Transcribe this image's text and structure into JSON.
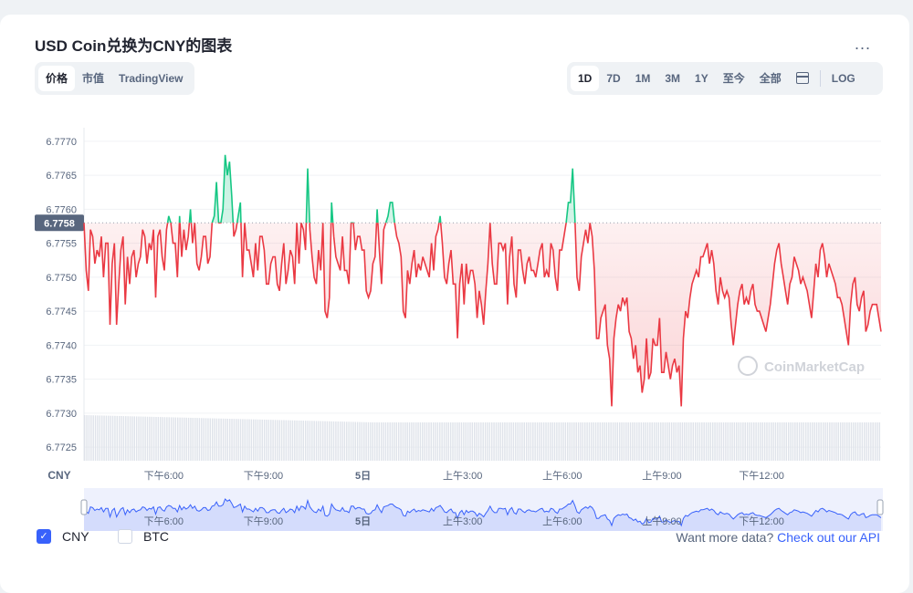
{
  "header": {
    "title": "USD Coin兑换为CNY的图表",
    "more": "..."
  },
  "view_tabs": [
    {
      "label": "价格",
      "active": true
    },
    {
      "label": "市值",
      "active": false
    },
    {
      "label": "TradingView",
      "active": false
    }
  ],
  "range_tabs": [
    {
      "label": "1D",
      "active": true
    },
    {
      "label": "7D",
      "active": false
    },
    {
      "label": "1M",
      "active": false
    },
    {
      "label": "3M",
      "active": false
    },
    {
      "label": "1Y",
      "active": false
    },
    {
      "label": "至今",
      "active": false
    },
    {
      "label": "全部",
      "active": false
    }
  ],
  "log_label": "LOG",
  "watermark": "CoinMarketCap",
  "footer": {
    "cny_label": "CNY",
    "btc_label": "BTC",
    "cny_checked": true,
    "btc_checked": false,
    "api_text": "Want more data?",
    "api_link": "Check out our API"
  },
  "colors": {
    "up": "#16c784",
    "down": "#ea3943",
    "accent": "#3861fb",
    "nav_line": "#3861fb",
    "volume": "#dfe3ea"
  },
  "chart_data": {
    "type": "line",
    "title": "",
    "currency_label": "CNY",
    "baseline": 6.7758,
    "baseline_label": "6.7758",
    "ylim": [
      6.7723,
      6.7772
    ],
    "y_ticks": [
      "6.7770",
      "6.7765",
      "6.7760",
      "6.7755",
      "6.7750",
      "6.7745",
      "6.7740",
      "6.7735",
      "6.7730",
      "6.7725"
    ],
    "x_ticks": [
      "下午6:00",
      "下午9:00",
      "5日",
      "上午3:00",
      "上午6:00",
      "上午9:00",
      "下午12:00"
    ],
    "x_range": [
      0,
      100
    ],
    "x_tick_positions": [
      10,
      22.5,
      35,
      47.5,
      60,
      72.5,
      85
    ],
    "series": [
      {
        "values": [
          6.7758,
          6.7751,
          6.7748,
          6.7757,
          6.7756,
          6.7752,
          6.7754,
          6.7753,
          6.7756,
          6.775,
          6.7755,
          6.7755,
          6.7743,
          6.7752,
          6.7755,
          6.7743,
          6.7749,
          6.7754,
          6.7756,
          6.7746,
          6.7753,
          6.7749,
          6.7753,
          6.7754,
          6.775,
          6.7752,
          6.7753,
          6.7757,
          6.7756,
          6.7752,
          6.7755,
          6.7754,
          6.7757,
          6.7747,
          6.7756,
          6.7757,
          6.7753,
          6.7751,
          6.7757,
          6.7759,
          6.7758,
          6.7755,
          6.7755,
          6.775,
          6.7759,
          6.7753,
          6.7757,
          6.7754,
          6.7756,
          6.776,
          6.7755,
          6.7758,
          6.7752,
          6.7751,
          6.7753,
          6.7756,
          6.7756,
          6.7752,
          6.7753,
          6.7758,
          6.7759,
          6.7764,
          6.7758,
          6.7758,
          6.776,
          6.7768,
          6.7765,
          6.7767,
          6.7762,
          6.7756,
          6.7757,
          6.7759,
          6.7761,
          6.775,
          6.7758,
          6.7754,
          6.7754,
          6.7752,
          6.775,
          6.7755,
          6.7751,
          6.7756,
          6.7756,
          6.7754,
          6.7749,
          6.7749,
          6.7752,
          6.7753,
          6.7753,
          6.7749,
          6.7748,
          6.7752,
          6.7755,
          6.7749,
          6.7751,
          6.7754,
          6.7753,
          6.7749,
          6.7758,
          6.7752,
          6.7758,
          6.7757,
          6.7754,
          6.7766,
          6.7757,
          6.7753,
          6.775,
          6.7749,
          6.7754,
          6.7751,
          6.7758,
          6.7745,
          6.7744,
          6.7747,
          6.7761,
          6.7756,
          6.7753,
          6.7752,
          6.7751,
          6.7756,
          6.7751,
          6.7751,
          6.7749,
          6.7758,
          6.7758,
          6.7754,
          6.7756,
          6.7756,
          6.7754,
          6.7754,
          6.7748,
          6.7747,
          6.7748,
          6.7752,
          6.7753,
          6.776,
          6.7754,
          6.7749,
          6.7757,
          6.7758,
          6.7759,
          6.7761,
          6.7761,
          6.7758,
          6.7756,
          6.7755,
          6.7753,
          6.7745,
          6.7744,
          6.7751,
          6.7749,
          6.7752,
          6.7754,
          6.775,
          6.7752,
          6.7751,
          6.7753,
          6.7752,
          6.7751,
          6.775,
          6.7755,
          6.7751,
          6.7756,
          6.7757,
          6.7759,
          6.7755,
          6.775,
          6.7749,
          6.7752,
          6.7754,
          6.7749,
          6.7749,
          6.7741,
          6.7749,
          6.7752,
          6.7746,
          6.7752,
          6.7749,
          6.7751,
          6.7751,
          6.7749,
          6.7744,
          6.7748,
          6.7746,
          6.7743,
          6.7748,
          6.7752,
          6.7758,
          6.7752,
          6.7749,
          6.7749,
          6.7755,
          6.7755,
          6.7754,
          6.7755,
          6.7746,
          6.7753,
          6.7756,
          6.7749,
          6.7747,
          6.7754,
          6.7754,
          6.7751,
          6.7749,
          6.7752,
          6.7753,
          6.7751,
          6.7751,
          6.775,
          6.7752,
          6.7754,
          6.7755,
          6.775,
          6.7751,
          6.775,
          6.7755,
          6.7754,
          6.775,
          6.7748,
          6.7754,
          6.7754,
          6.7756,
          6.7758,
          6.7761,
          6.7761,
          6.7766,
          6.7759,
          6.775,
          6.7748,
          6.7753,
          6.7755,
          6.7757,
          6.7755,
          6.7758,
          6.7756,
          6.7751,
          6.7741,
          6.7741,
          6.7744,
          6.7745,
          6.7746,
          6.774,
          6.7738,
          6.7731,
          6.7741,
          6.7744,
          6.7746,
          6.7745,
          6.7747,
          6.7746,
          6.7747,
          6.7742,
          6.7741,
          6.7738,
          6.774,
          6.7736,
          6.7737,
          6.7733,
          6.7735,
          6.7741,
          6.7735,
          6.7736,
          6.7741,
          6.774,
          6.774,
          6.7744,
          6.7736,
          6.7736,
          6.7739,
          6.7737,
          6.7735,
          6.7737,
          6.7738,
          6.7736,
          6.7737,
          6.7731,
          6.7741,
          6.7745,
          6.7744,
          6.7747,
          6.7749,
          6.775,
          6.7751,
          6.775,
          6.7753,
          6.7753,
          6.7754,
          6.7755,
          6.7752,
          6.7754,
          6.7752,
          6.7748,
          6.7746,
          6.775,
          6.7748,
          6.7747,
          6.7748,
          6.7747,
          6.7743,
          6.774,
          6.7743,
          6.7746,
          6.7748,
          6.7749,
          6.7746,
          6.7747,
          6.7746,
          6.7748,
          6.7749,
          6.7746,
          6.7745,
          6.7745,
          6.7744,
          6.7743,
          6.7742,
          6.7744,
          6.7746,
          6.7749,
          6.7752,
          6.7754,
          6.7755,
          6.7752,
          6.775,
          6.7748,
          6.7746,
          6.7749,
          6.775,
          6.7753,
          6.7752,
          6.7751,
          6.7749,
          6.775,
          6.7749,
          6.7748,
          6.7746,
          6.7744,
          6.7748,
          6.7752,
          6.775,
          6.7754,
          6.7755,
          6.7753,
          6.775,
          6.7752,
          6.7751,
          6.775,
          6.7749,
          6.7747,
          6.7747,
          6.7746,
          6.7744,
          6.7742,
          6.774,
          6.7746,
          6.7749,
          6.775,
          6.7746,
          6.7745,
          6.7747,
          6.7748,
          6.7742,
          6.7743,
          6.7745,
          6.7746,
          6.7746,
          6.7746,
          6.7744,
          6.7742
        ]
      }
    ]
  }
}
